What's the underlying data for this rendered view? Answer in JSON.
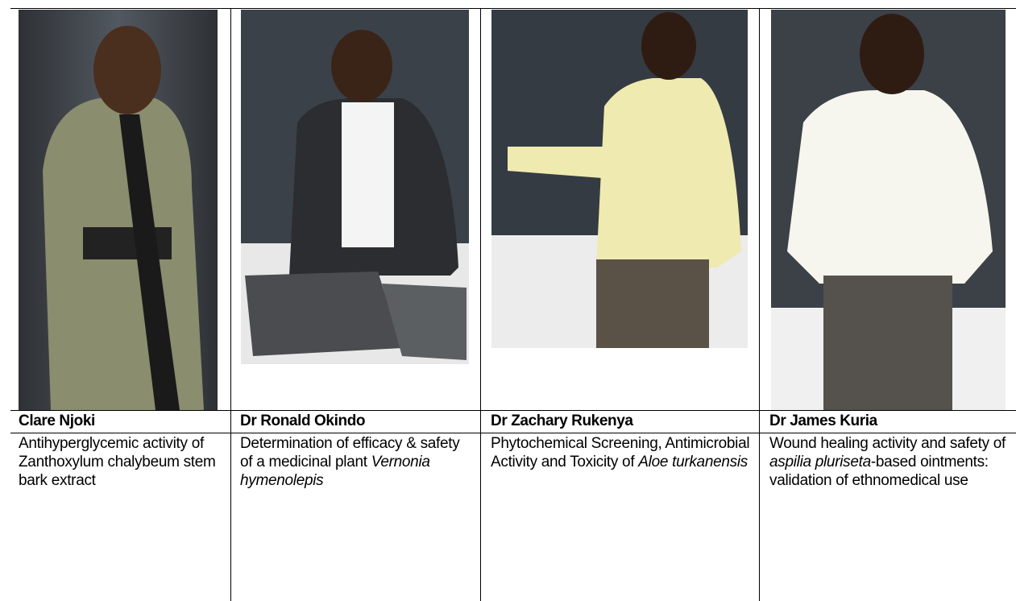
{
  "table": {
    "columns": [
      {
        "name": "Clare Njoki",
        "description": [
          {
            "text": "Antihyperglycemic activity of Zanthoxylum chalybeum stem bark extract",
            "style": "normal"
          }
        ]
      },
      {
        "name": "Dr Ronald Okindo",
        "description": [
          {
            "text": "Determination of efficacy & safety of a medicinal plant ",
            "style": "normal"
          },
          {
            "text": "Vernonia hymenolepis",
            "style": "italic"
          }
        ]
      },
      {
        "name": "Dr Zachary Rukenya",
        "description": [
          {
            "text": "Phytochemical Screening, Antimicrobial Activity and Toxicity of ",
            "style": "normal"
          },
          {
            "text": "Aloe turkanensis",
            "style": "italic"
          }
        ]
      },
      {
        "name": "Dr James Kuria",
        "description": [
          {
            "text": "Wound healing activity and safety of ",
            "style": "normal"
          },
          {
            "text": "aspilia pluriseta",
            "style": "italic"
          },
          {
            "text": "-based ointments: validation of ethnomedical use",
            "style": "normal"
          }
        ]
      }
    ]
  }
}
